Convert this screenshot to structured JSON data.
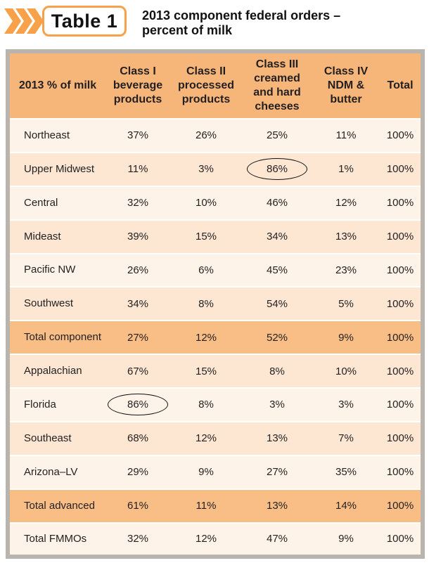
{
  "header": {
    "badge": "Table 1",
    "title_line1": "2013 component federal orders –",
    "title_line2": "percent of milk",
    "accent_color": "#f7a24a"
  },
  "table": {
    "columns": [
      "2013 % of milk",
      "Class I beverage products",
      "Class II processed products",
      "Class III creamed and hard cheeses",
      "Class IV NDM & butter",
      "Total"
    ],
    "rows": [
      {
        "label": "Northeast",
        "values": [
          "37%",
          "26%",
          "25%",
          "11%",
          "100%"
        ]
      },
      {
        "label": "Upper Midwest",
        "values": [
          "11%",
          "3%",
          "86%",
          "1%",
          "100%"
        ]
      },
      {
        "label": "Central",
        "values": [
          "32%",
          "10%",
          "46%",
          "12%",
          "100%"
        ]
      },
      {
        "label": "Mideast",
        "values": [
          "39%",
          "15%",
          "34%",
          "13%",
          "100%"
        ]
      },
      {
        "label": "Pacific NW",
        "values": [
          "26%",
          "6%",
          "45%",
          "23%",
          "100%"
        ]
      },
      {
        "label": "Southwest",
        "values": [
          "34%",
          "8%",
          "54%",
          "5%",
          "100%"
        ]
      },
      {
        "label": "Total component",
        "values": [
          "27%",
          "12%",
          "52%",
          "9%",
          "100%"
        ]
      },
      {
        "label": "Appalachian",
        "values": [
          "67%",
          "15%",
          "8%",
          "10%",
          "100%"
        ]
      },
      {
        "label": "Florida",
        "values": [
          "86%",
          "8%",
          "3%",
          "3%",
          "100%"
        ]
      },
      {
        "label": "Southeast",
        "values": [
          "68%",
          "12%",
          "13%",
          "7%",
          "100%"
        ]
      },
      {
        "label": "Arizona–LV",
        "values": [
          "29%",
          "9%",
          "27%",
          "35%",
          "100%"
        ]
      },
      {
        "label": "Total advanced",
        "values": [
          "61%",
          "11%",
          "13%",
          "14%",
          "100%"
        ]
      },
      {
        "label": "Total FMMOs",
        "values": [
          "32%",
          "12%",
          "47%",
          "9%",
          "100%"
        ]
      }
    ]
  }
}
